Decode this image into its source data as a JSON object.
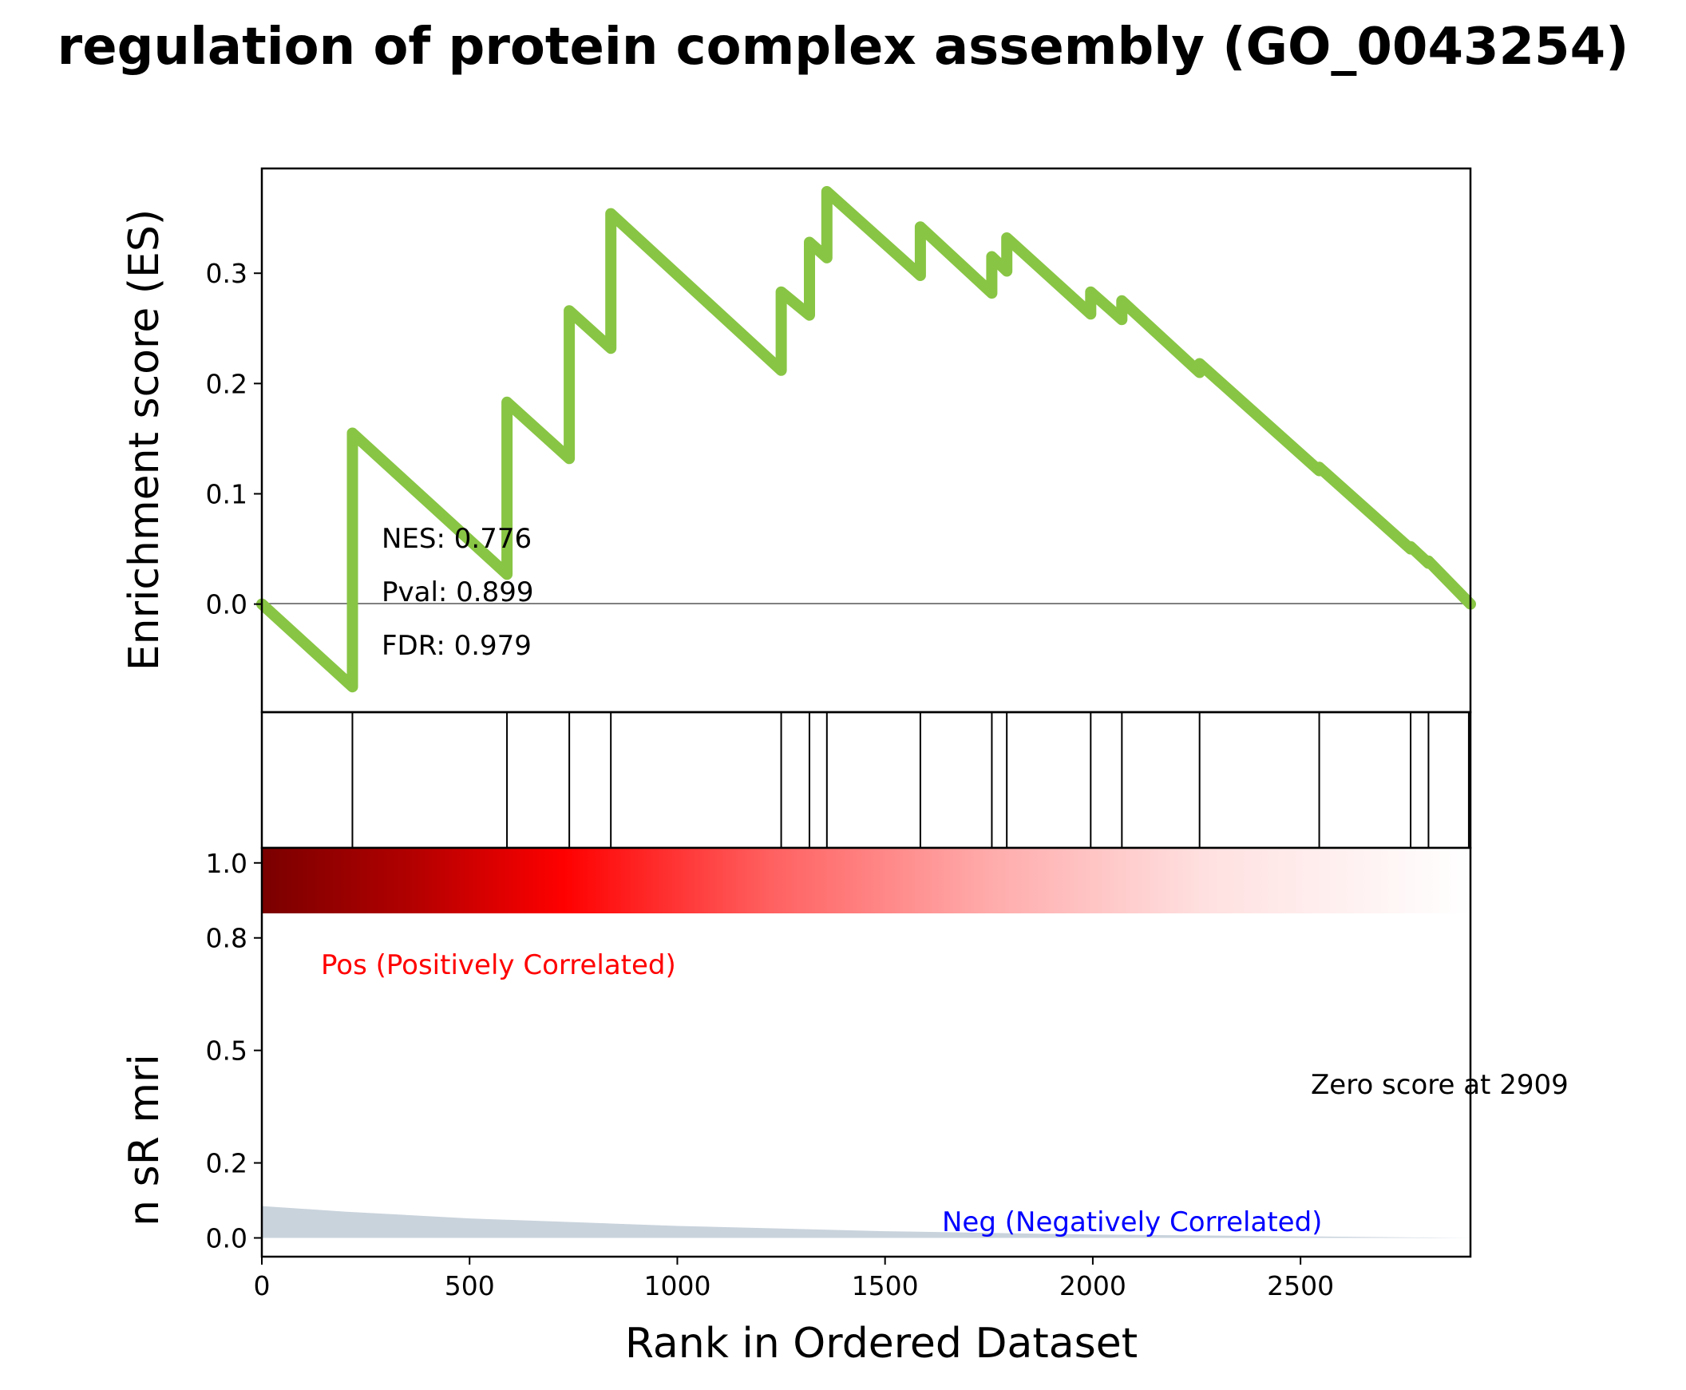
{
  "title": "regulation of protein complex assembly (GO_0043254)",
  "colors": {
    "es_line": "#88c544",
    "hits": "#000000",
    "ranked_fill": "#c9d3dc",
    "pos_label": "#ff0000",
    "neg_label": "#0000ff",
    "zero_line": "#808080"
  },
  "stats": {
    "nes": "NES: 0.776",
    "pval": "Pval: 0.899",
    "fdr": "FDR: 0.979"
  },
  "labels": {
    "pos": "Pos (Positively Correlated)",
    "neg": "Neg (Negatively Correlated)",
    "zero_score": "Zero score at 2909"
  },
  "chart_data": {
    "type": "line",
    "title": "regulation of protein complex assembly (GO_0043254)",
    "xlabel": "Rank in Ordered Dataset",
    "ylabel": "Enrichment score (ES)",
    "ylabel_lower": "n  sR  mri",
    "xlim": [
      0,
      2909
    ],
    "ylim": [
      -0.098,
      0.395
    ],
    "lower_ylim": [
      -0.05,
      1.04
    ],
    "x_ticks": [
      {
        "value": 0,
        "label": "0"
      },
      {
        "value": 500,
        "label": "500"
      },
      {
        "value": 1000,
        "label": "1000"
      },
      {
        "value": 1500,
        "label": "1500"
      },
      {
        "value": 2000,
        "label": "2000"
      },
      {
        "value": 2500,
        "label": "2500"
      }
    ],
    "y_ticks": [
      {
        "value": 0.0,
        "label": "0.0"
      },
      {
        "value": 0.1,
        "label": "0.1"
      },
      {
        "value": 0.2,
        "label": "0.2"
      },
      {
        "value": 0.3,
        "label": "0.3"
      }
    ],
    "lower_y_ticks": [
      {
        "value": 0.0,
        "label": "0.0"
      },
      {
        "value": 0.2,
        "label": "0.2"
      },
      {
        "value": 0.5,
        "label": "0.5"
      },
      {
        "value": 0.8,
        "label": "0.8"
      },
      {
        "value": 1.0,
        "label": "1.0"
      }
    ],
    "hits": [
      218,
      590,
      740,
      840,
      1250,
      1318,
      1360,
      1585,
      1757,
      1793,
      1995,
      2070,
      2257,
      2545,
      2765,
      2808,
      2905
    ],
    "running_es": [
      {
        "x": 0,
        "y": 0.0
      },
      {
        "x": 218,
        "y": -0.075
      },
      {
        "x": 218,
        "y": 0.155
      },
      {
        "x": 590,
        "y": 0.027
      },
      {
        "x": 590,
        "y": 0.183
      },
      {
        "x": 740,
        "y": 0.132
      },
      {
        "x": 740,
        "y": 0.266
      },
      {
        "x": 840,
        "y": 0.232
      },
      {
        "x": 840,
        "y": 0.354
      },
      {
        "x": 1250,
        "y": 0.212
      },
      {
        "x": 1250,
        "y": 0.283
      },
      {
        "x": 1318,
        "y": 0.262
      },
      {
        "x": 1318,
        "y": 0.328
      },
      {
        "x": 1360,
        "y": 0.314
      },
      {
        "x": 1360,
        "y": 0.374
      },
      {
        "x": 1585,
        "y": 0.298
      },
      {
        "x": 1585,
        "y": 0.342
      },
      {
        "x": 1757,
        "y": 0.282
      },
      {
        "x": 1757,
        "y": 0.315
      },
      {
        "x": 1793,
        "y": 0.302
      },
      {
        "x": 1793,
        "y": 0.332
      },
      {
        "x": 1995,
        "y": 0.263
      },
      {
        "x": 1995,
        "y": 0.283
      },
      {
        "x": 2070,
        "y": 0.258
      },
      {
        "x": 2070,
        "y": 0.275
      },
      {
        "x": 2257,
        "y": 0.21
      },
      {
        "x": 2257,
        "y": 0.218
      },
      {
        "x": 2545,
        "y": 0.121
      },
      {
        "x": 2545,
        "y": 0.124
      },
      {
        "x": 2765,
        "y": 0.05
      },
      {
        "x": 2765,
        "y": 0.052
      },
      {
        "x": 2808,
        "y": 0.037
      },
      {
        "x": 2808,
        "y": 0.039
      },
      {
        "x": 2909,
        "y": 0.0
      }
    ],
    "ranked_metric": [
      {
        "x": 0,
        "y": 0.085
      },
      {
        "x": 200,
        "y": 0.07
      },
      {
        "x": 500,
        "y": 0.052
      },
      {
        "x": 1000,
        "y": 0.032
      },
      {
        "x": 1500,
        "y": 0.018
      },
      {
        "x": 2000,
        "y": 0.009
      },
      {
        "x": 2500,
        "y": 0.004
      },
      {
        "x": 2909,
        "y": 0.0
      }
    ],
    "grid": false,
    "legend": "none"
  }
}
